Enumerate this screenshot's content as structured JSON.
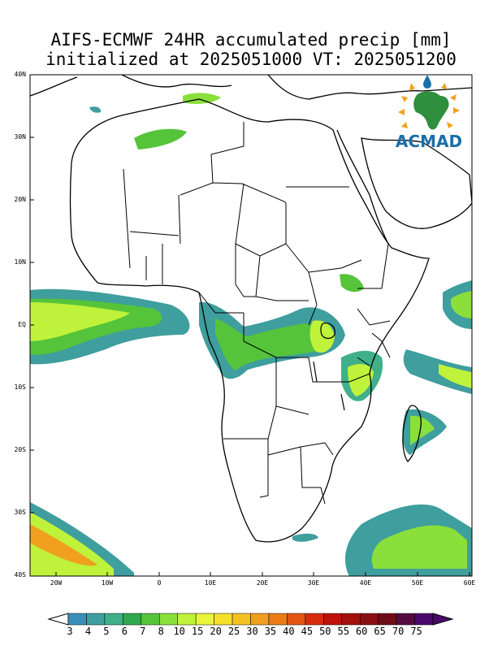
{
  "title": {
    "line1": "AIFS-ECMWF 24HR accumulated precip [mm]",
    "line2": "initialized at 2025051000 VT: 2025051200"
  },
  "logo": {
    "text": "ACMAD",
    "icon": "africa-map-logo-icon"
  },
  "axes": {
    "lat_labels": [
      "40N",
      "30N",
      "20N",
      "10N",
      "EQ",
      "10S",
      "20S",
      "30S",
      "40S"
    ],
    "lon_labels": [
      "20W",
      "10W",
      "0",
      "10E",
      "20E",
      "30E",
      "40E",
      "50E",
      "60E"
    ]
  },
  "colorbar": {
    "labels": [
      "3",
      "4",
      "5",
      "6",
      "7",
      "8",
      "10",
      "15",
      "20",
      "25",
      "30",
      "35",
      "40",
      "45",
      "50",
      "55",
      "60",
      "65",
      "70",
      "75"
    ],
    "colors": [
      "#3a8fb7",
      "#3f9e9e",
      "#3fb08a",
      "#2fa84f",
      "#55c43a",
      "#8adf3a",
      "#bff23a",
      "#e9f53a",
      "#f6e02a",
      "#f5c223",
      "#f0a01e",
      "#ea7d18",
      "#e25512",
      "#d82a0e",
      "#c0100c",
      "#a4100e",
      "#8a0f13",
      "#6e0d18",
      "#560b40",
      "#4a0a6a"
    ]
  },
  "units": "mm"
}
